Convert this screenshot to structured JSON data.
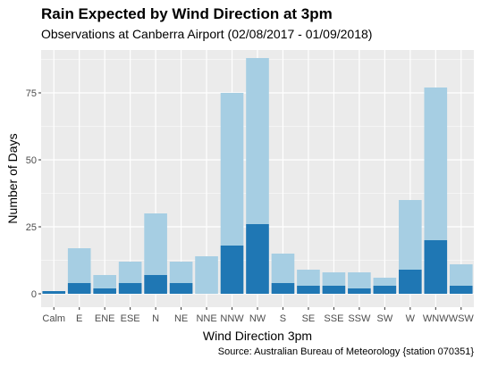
{
  "chart_data": {
    "type": "bar",
    "stacked": true,
    "title": "Rain Expected by Wind Direction at 3pm",
    "subtitle": "Observations at Canberra Airport (02/08/2017 - 01/09/2018)",
    "caption": "Source: Australian Bureau of Meteorology {station 070351}",
    "xlabel": "Wind Direction 3pm",
    "ylabel": "Number of Days",
    "ylim": [
      -5,
      91
    ],
    "yticks": [
      0,
      25,
      50,
      75
    ],
    "grid": true,
    "categories": [
      "Calm",
      "E",
      "ENE",
      "ESE",
      "N",
      "NE",
      "NNE",
      "NNW",
      "NW",
      "S",
      "SE",
      "SSE",
      "SSW",
      "SW",
      "W",
      "WNW",
      "WSW"
    ],
    "series": [
      {
        "color": "#1f77b4",
        "values": [
          1,
          4,
          2,
          4,
          7,
          4,
          0,
          18,
          26,
          4,
          3,
          3,
          2,
          3,
          9,
          20,
          3
        ]
      },
      {
        "color": "#a6cee3",
        "values": [
          0,
          13,
          5,
          8,
          23,
          8,
          14,
          57,
          62,
          11,
          6,
          5,
          6,
          3,
          26,
          57,
          8
        ]
      }
    ],
    "colors": {
      "panel": "#ebebeb",
      "grid": "#ffffff",
      "axis_text": "#4d4d4d"
    }
  }
}
